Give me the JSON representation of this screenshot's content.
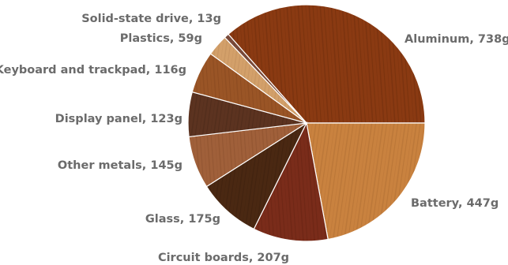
{
  "chart_data": {
    "type": "pie",
    "title": "",
    "slices": [
      {
        "label": "Aluminum, 738g",
        "name": "Aluminum",
        "value": 738,
        "color": "#8a3a12",
        "grain": "#5e2406"
      },
      {
        "label": "Battery, 447g",
        "name": "Battery",
        "value": 447,
        "color": "#c9823f",
        "grain": "#a0612a"
      },
      {
        "label": "Circuit boards, 207g",
        "name": "Circuit boards",
        "value": 207,
        "color": "#7a2c1a",
        "grain": "#5a1c0e"
      },
      {
        "label": "Glass, 175g",
        "name": "Glass",
        "value": 175,
        "color": "#4a2812",
        "grain": "#331a0a"
      },
      {
        "label": "Other metals, 145g",
        "name": "Other metals",
        "value": 145,
        "color": "#a0603a",
        "grain": "#7e4626"
      },
      {
        "label": "Display panel, 123g",
        "name": "Display panel",
        "value": 123,
        "color": "#5c3320",
        "grain": "#3f2214"
      },
      {
        "label": "Keyboard and trackpad, 116g",
        "name": "Keyboard and trackpad",
        "value": 116,
        "color": "#9a5526",
        "grain": "#7a3e18"
      },
      {
        "label": "Plastics, 59g",
        "name": "Plastics",
        "value": 59,
        "color": "#d3a06a",
        "grain": "#b48152"
      },
      {
        "label": "Solid-state drive, 13g",
        "name": "Solid-state drive",
        "value": 13,
        "color": "#7a4a3a",
        "grain": "#5a3326"
      }
    ]
  }
}
